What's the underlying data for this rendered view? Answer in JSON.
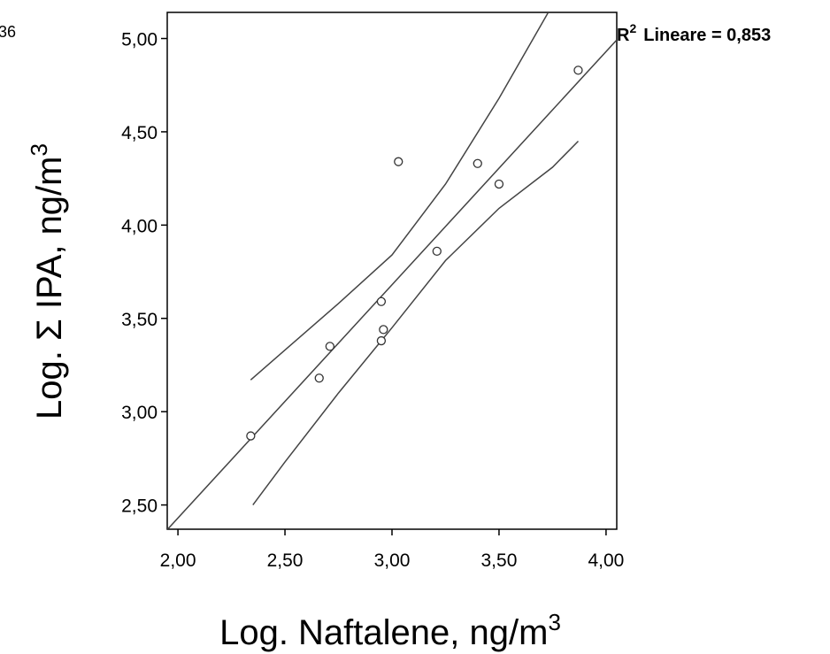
{
  "corner_text": "36",
  "chart_data": {
    "type": "scatter",
    "xlabel": "Log. Naftalene, ng/m",
    "xlabel_sup": "3",
    "ylabel": "Log. Σ IPA, ng/m",
    "ylabel_sup": "3",
    "xlim": [
      1.95,
      4.05
    ],
    "ylim": [
      2.37,
      5.14
    ],
    "x_ticks": [
      2.0,
      2.5,
      3.0,
      3.5,
      4.0
    ],
    "x_tick_labels": [
      "2,00",
      "2,50",
      "3,00",
      "3,50",
      "4,00"
    ],
    "y_ticks": [
      2.5,
      3.0,
      3.5,
      4.0,
      4.5,
      5.0
    ],
    "y_tick_labels": [
      "2,50",
      "3,00",
      "3,50",
      "4,00",
      "4,50",
      "5,00"
    ],
    "points": [
      {
        "x": 2.34,
        "y": 2.87
      },
      {
        "x": 2.66,
        "y": 3.18
      },
      {
        "x": 2.71,
        "y": 3.35
      },
      {
        "x": 2.95,
        "y": 3.59
      },
      {
        "x": 2.96,
        "y": 3.44
      },
      {
        "x": 2.95,
        "y": 3.38
      },
      {
        "x": 3.03,
        "y": 4.34
      },
      {
        "x": 3.21,
        "y": 3.86
      },
      {
        "x": 3.4,
        "y": 4.33
      },
      {
        "x": 3.5,
        "y": 4.22
      },
      {
        "x": 3.87,
        "y": 4.83
      }
    ],
    "fit_line": {
      "slope": 1.25,
      "intercept": -0.07
    },
    "conf_upper": [
      [
        2.34,
        3.17
      ],
      [
        2.5,
        3.33
      ],
      [
        2.75,
        3.58
      ],
      [
        3.0,
        3.84
      ],
      [
        3.25,
        4.22
      ],
      [
        3.5,
        4.68
      ],
      [
        3.73,
        5.14
      ]
    ],
    "conf_lower": [
      [
        2.35,
        2.5
      ],
      [
        2.5,
        2.73
      ],
      [
        2.75,
        3.1
      ],
      [
        3.0,
        3.45
      ],
      [
        3.25,
        3.81
      ],
      [
        3.5,
        4.09
      ],
      [
        3.75,
        4.31
      ],
      [
        3.87,
        4.45
      ]
    ],
    "r2_prefix": "R",
    "r2_sup": "2",
    "r2_text": "Lineare = 0,853",
    "grid": false,
    "colors": {
      "line": "#444444",
      "marker": "#333333",
      "axis": "#000000"
    }
  }
}
